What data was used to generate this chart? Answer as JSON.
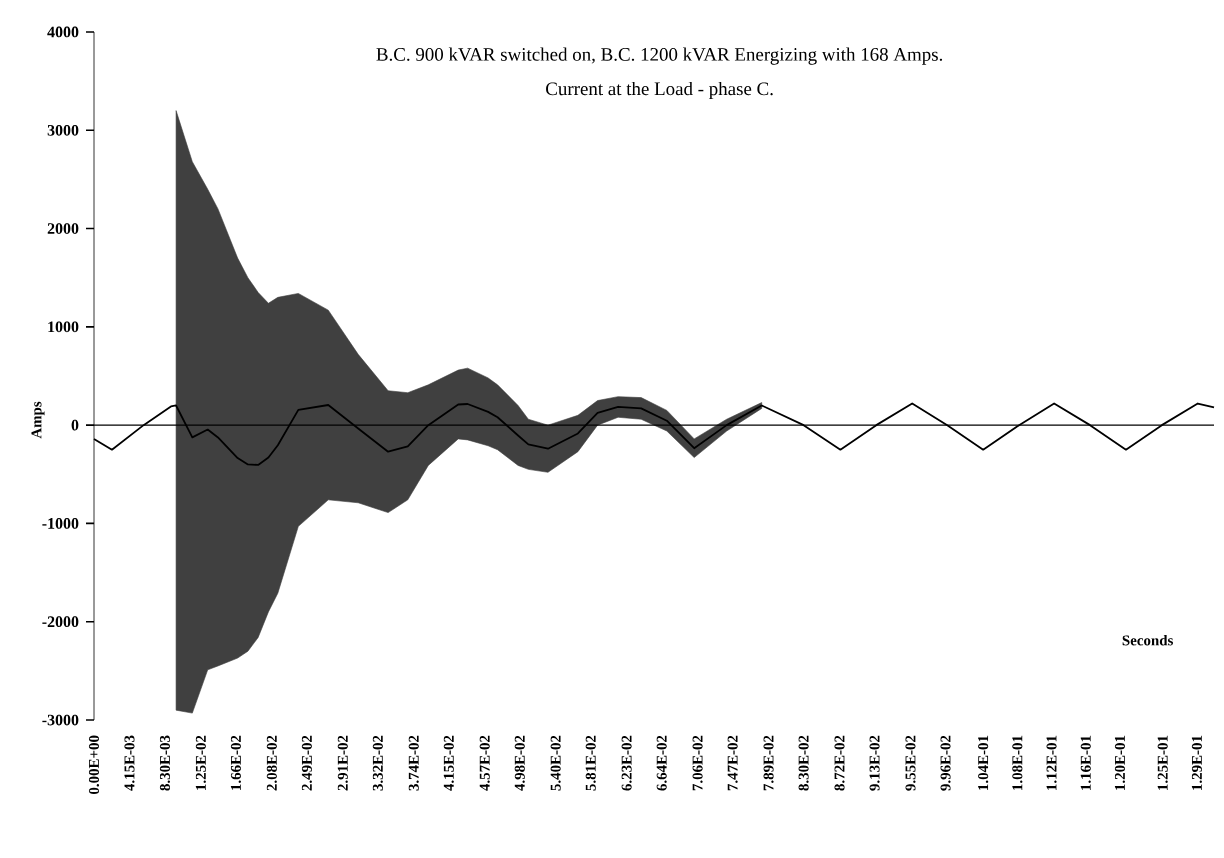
{
  "chart_data": {
    "type": "line",
    "title": "B.C. 900 kVAR switched on, B.C. 1200 kVAR Energizing with 168 Amps.",
    "subtitle": "Current at the Load - phase C.",
    "xlabel": "Seconds",
    "ylabel": "Amps",
    "x": [
      0,
      0.0021,
      0.0058,
      0.009,
      0.0096,
      0.0115,
      0.0133,
      0.0145,
      0.0168,
      0.018,
      0.0192,
      0.0204,
      0.0215,
      0.0239,
      0.0274,
      0.0309,
      0.0344,
      0.0367,
      0.0391,
      0.0426,
      0.0437,
      0.0461,
      0.0472,
      0.0496,
      0.0508,
      0.0531,
      0.0566,
      0.0589,
      0.0613,
      0.064,
      0.067,
      0.0702,
      0.074,
      0.0781,
      0.083,
      0.0873,
      0.0915,
      0.0957,
      0.0998,
      0.104,
      0.1082,
      0.1123,
      0.1165,
      0.1207,
      0.1249,
      0.1291,
      0.131
    ],
    "series": [
      {
        "color": "#000000",
        "values": [
          -140,
          -250,
          0,
          190,
          200,
          -125,
          -45,
          -125,
          -335,
          -400,
          -405,
          -330,
          -205,
          155,
          205,
          -35,
          -270,
          -215,
          0,
          210,
          215,
          135,
          80,
          -105,
          -195,
          -240,
          -85,
          125,
          185,
          170,
          45,
          -235,
          0,
          200,
          0,
          -250,
          0,
          220,
          0,
          -250,
          0,
          220,
          0,
          -250,
          0,
          220,
          180
        ],
        "lower": [
          null,
          null,
          null,
          null,
          -2900,
          -2930,
          -2490,
          -2450,
          -2370,
          -2300,
          -2160,
          -1900,
          -1710,
          -1030,
          -760,
          -790,
          -890,
          -760,
          -410,
          -140,
          -150,
          -210,
          -250,
          -410,
          -450,
          -480,
          -270,
          0,
          80,
          60,
          -60,
          -330,
          -60,
          170,
          null,
          null,
          null,
          null,
          null,
          null,
          null,
          null,
          null,
          null,
          null,
          null,
          null
        ],
        "upper": [
          null,
          null,
          null,
          null,
          3200,
          2680,
          2400,
          2200,
          1700,
          1500,
          1350,
          1240,
          1300,
          1340,
          1170,
          720,
          350,
          330,
          410,
          560,
          580,
          480,
          410,
          200,
          60,
          0,
          100,
          250,
          290,
          280,
          150,
          -140,
          60,
          230,
          null,
          null,
          null,
          null,
          null,
          null,
          null,
          null,
          null,
          null,
          null,
          null,
          null
        ]
      }
    ],
    "xlim": [
      0,
      0.131
    ],
    "ylim": [
      -3000,
      4000
    ],
    "yticks": [
      -3000,
      -2000,
      -1000,
      0,
      1000,
      2000,
      3000,
      4000
    ],
    "xticks": [
      {
        "value": 0,
        "label": "0.00E+00"
      },
      {
        "value": 0.00415,
        "label": "4.15E-03"
      },
      {
        "value": 0.0083,
        "label": "8.30E-03"
      },
      {
        "value": 0.0125,
        "label": "1.25E-02"
      },
      {
        "value": 0.0166,
        "label": "1.66E-02"
      },
      {
        "value": 0.0208,
        "label": "2.08E-02"
      },
      {
        "value": 0.0249,
        "label": "2.49E-02"
      },
      {
        "value": 0.0291,
        "label": "2.91E-02"
      },
      {
        "value": 0.0332,
        "label": "3.32E-02"
      },
      {
        "value": 0.0374,
        "label": "3.74E-02"
      },
      {
        "value": 0.0415,
        "label": "4.15E-02"
      },
      {
        "value": 0.0457,
        "label": "4.57E-02"
      },
      {
        "value": 0.0498,
        "label": "4.98E-02"
      },
      {
        "value": 0.054,
        "label": "5.40E-02"
      },
      {
        "value": 0.0581,
        "label": "5.81E-02"
      },
      {
        "value": 0.0623,
        "label": "6.23E-02"
      },
      {
        "value": 0.0664,
        "label": "6.64E-02"
      },
      {
        "value": 0.0706,
        "label": "7.06E-02"
      },
      {
        "value": 0.0747,
        "label": "7.47E-02"
      },
      {
        "value": 0.0789,
        "label": "7.89E-02"
      },
      {
        "value": 0.083,
        "label": "8.30E-02"
      },
      {
        "value": 0.0872,
        "label": "8.72E-02"
      },
      {
        "value": 0.0913,
        "label": "9.13E-02"
      },
      {
        "value": 0.0955,
        "label": "9.55E-02"
      },
      {
        "value": 0.0996,
        "label": "9.96E-02"
      },
      {
        "value": 0.104,
        "label": "1.04E-01"
      },
      {
        "value": 0.108,
        "label": "1.08E-01"
      },
      {
        "value": 0.112,
        "label": "1.12E-01"
      },
      {
        "value": 0.116,
        "label": "1.16E-01"
      },
      {
        "value": 0.12,
        "label": "1.20E-01"
      },
      {
        "value": 0.125,
        "label": "1.25E-01"
      },
      {
        "value": 0.129,
        "label": "1.29E-01"
      }
    ],
    "ref_lines": [
      {
        "axis": "y",
        "value": 0,
        "color": "#000000"
      }
    ]
  }
}
